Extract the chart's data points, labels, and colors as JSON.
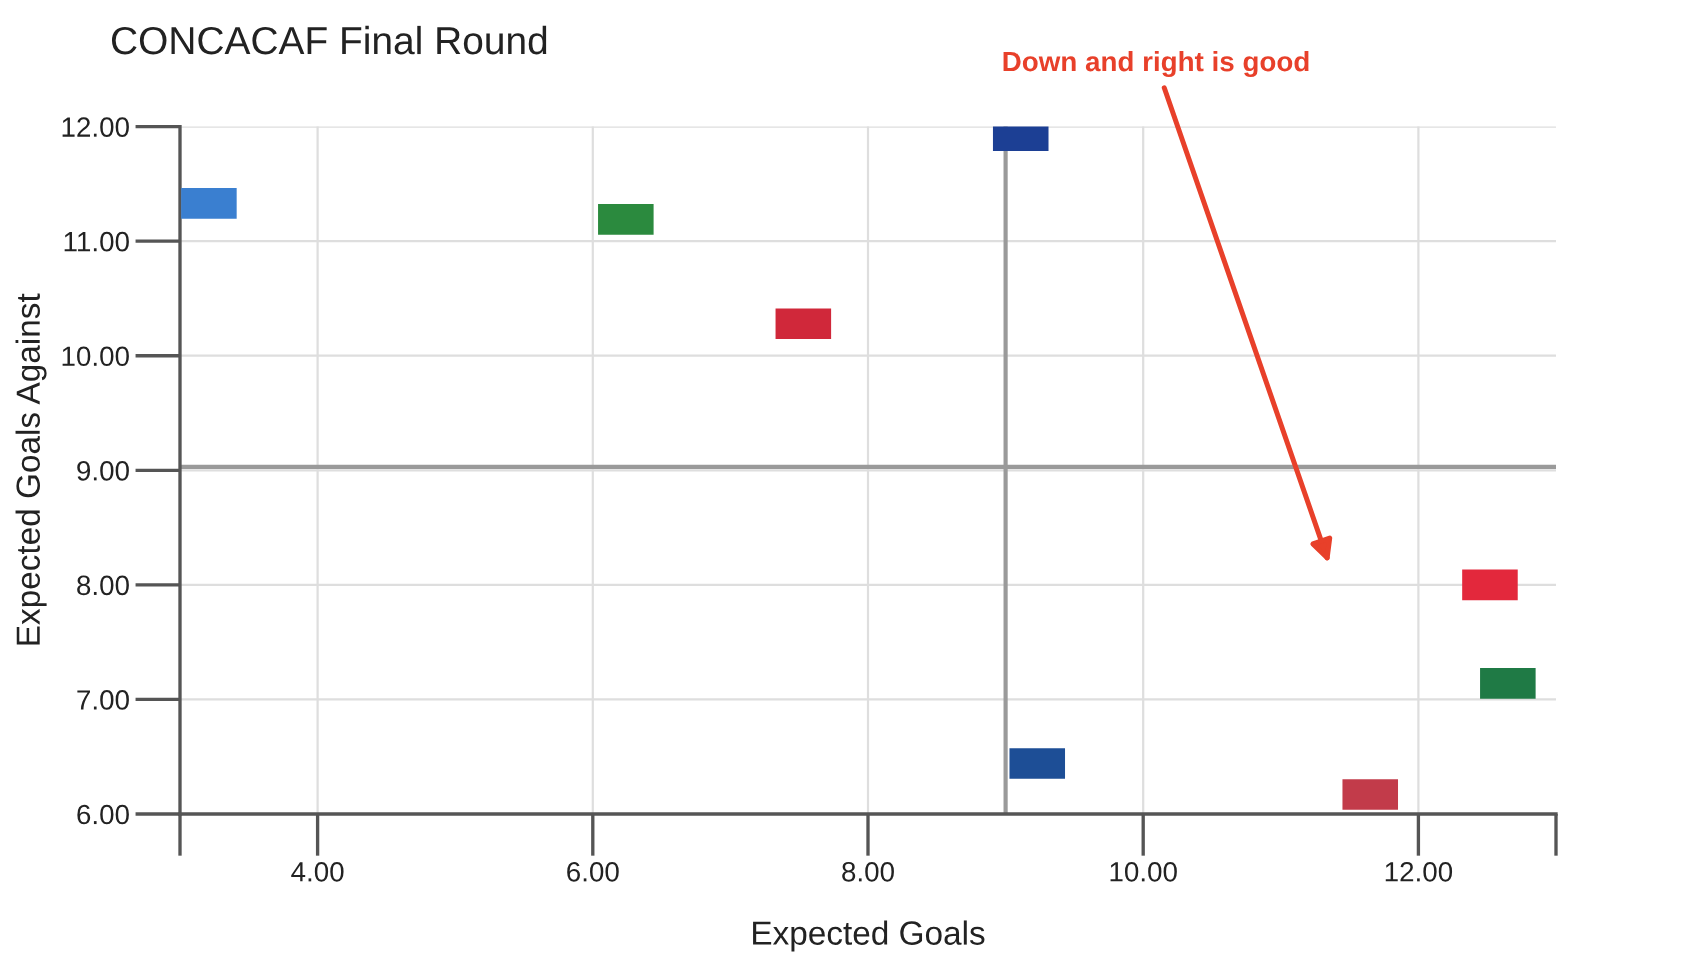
{
  "chart_data": {
    "type": "scatter",
    "title": "CONCACAF Final Round",
    "xlabel": "Expected Goals",
    "ylabel": "Expected Goals Against",
    "annotations": [
      "Down and right is good"
    ],
    "x": [
      3.21,
      6.24,
      7.53,
      9.11,
      12.52,
      12.65,
      9.23,
      11.65
    ],
    "values": [
      11.33,
      11.19,
      10.28,
      11.92,
      8.0,
      7.14,
      6.44,
      6.17
    ],
    "colors": [
      "#3a7fd0",
      "#2b8a3e",
      "#d0283a",
      "#1c3f94",
      "#e3283c",
      "#1f7a45",
      "#1d4e96",
      "#c23b4a"
    ],
    "marker": "square",
    "xlim": [
      3,
      13
    ],
    "xticks": [
      {
        "value": 4,
        "label": "4.00"
      },
      {
        "value": 6,
        "label": "6.00"
      },
      {
        "value": 8,
        "label": "8.00"
      },
      {
        "value": 10,
        "label": "10.00"
      },
      {
        "value": 12,
        "label": "12.00"
      }
    ],
    "ylim": [
      6,
      12
    ],
    "yticks": [
      {
        "value": 6,
        "label": "6.00"
      },
      {
        "value": 7,
        "label": "7.00"
      },
      {
        "value": 8,
        "label": "8.00"
      },
      {
        "value": 9,
        "label": "9.00"
      },
      {
        "value": 10,
        "label": "10.00"
      },
      {
        "value": 11,
        "label": "11.00"
      },
      {
        "value": 12,
        "label": "12.00"
      }
    ],
    "grid": true,
    "ref_lines": [
      {
        "axis": "x",
        "value": 9.0,
        "color": "#9a9a9a"
      },
      {
        "axis": "y",
        "value": 9.03,
        "color": "#9a9a9a"
      }
    ]
  }
}
